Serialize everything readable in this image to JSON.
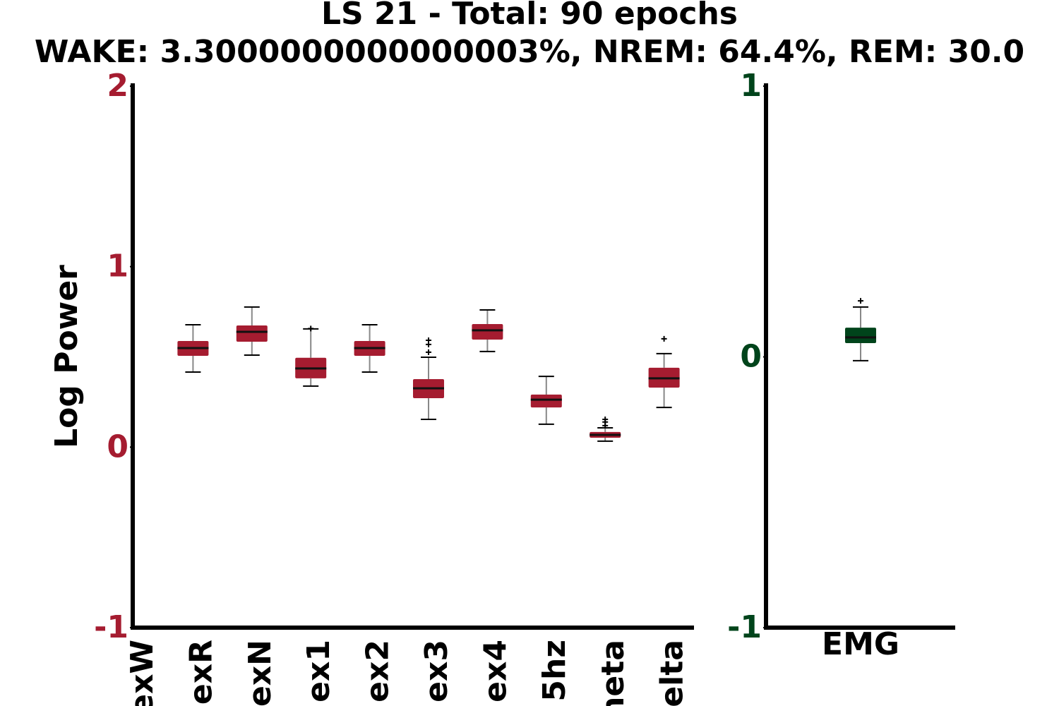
{
  "title": "LS 21 - Total: 90 epochs",
  "subtitle": "WAKE: 3.3000000000000003%, NREM: 64.4%, REM: 30.0",
  "chart_data": [
    {
      "type": "box",
      "ylabel": "Log Power",
      "color": "#a51c30",
      "categories": [
        "exW",
        "exR",
        "exN",
        "ex1",
        "ex2",
        "ex3",
        "ex4",
        "5hz",
        "neta",
        "elta"
      ],
      "whislo": [
        null,
        0.416,
        0.51,
        0.338,
        0.416,
        0.154,
        0.53,
        0.127,
        0.033,
        0.22
      ],
      "q1": [
        null,
        0.506,
        0.584,
        0.381,
        0.506,
        0.271,
        0.596,
        0.22,
        0.052,
        0.33
      ],
      "median": [
        null,
        0.549,
        0.639,
        0.436,
        0.549,
        0.326,
        0.647,
        0.263,
        0.068,
        0.381
      ],
      "q3": [
        null,
        0.588,
        0.674,
        0.495,
        0.588,
        0.377,
        0.682,
        0.291,
        0.084,
        0.44
      ],
      "whishi": [
        null,
        0.678,
        0.776,
        0.655,
        0.678,
        0.498,
        0.76,
        0.392,
        0.107,
        0.518
      ],
      "fliers": [
        [],
        [],
        [],
        [
          0.657
        ],
        [],
        [
          0.526,
          0.569,
          0.592
        ],
        [],
        [],
        [
          0.119,
          0.139,
          0.154
        ],
        [
          0.6
        ]
      ],
      "ylim": [
        -1,
        2
      ],
      "yticks": [
        -1,
        0,
        1,
        2
      ]
    },
    {
      "type": "box",
      "color": "#00441b",
      "categories": [
        "EMG"
      ],
      "whislo": [
        -0.014
      ],
      "q1": [
        0.051
      ],
      "median": [
        0.072
      ],
      "q3": [
        0.108
      ],
      "whishi": [
        0.184
      ],
      "fliers": [
        [
          0.207
        ]
      ],
      "ylim": [
        -1,
        1
      ],
      "yticks": [
        -1,
        0,
        1
      ]
    }
  ]
}
